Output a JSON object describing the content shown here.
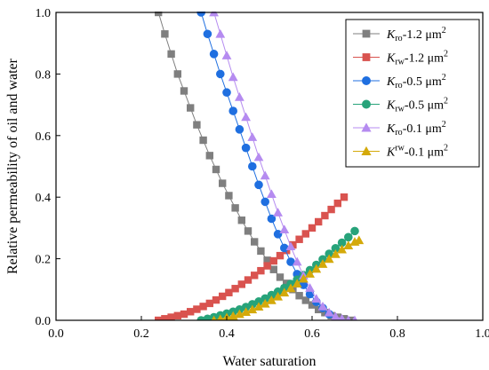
{
  "chart_data": {
    "type": "scatter",
    "xlabel": "Water saturation",
    "ylabel": "Relative permeability of oil and water",
    "xlim": [
      0.0,
      1.0
    ],
    "ylim": [
      0.0,
      1.0
    ],
    "xticks": [
      "0.0",
      "0.2",
      "0.4",
      "0.6",
      "0.8",
      "1.0"
    ],
    "yticks": [
      "0.0",
      "0.2",
      "0.4",
      "0.6",
      "0.8",
      "1.0"
    ],
    "grid": false,
    "legend_position": "top-right",
    "series": [
      {
        "name": "Kro-1.2 μm2",
        "label_main": "K",
        "label_sub": "ro",
        "label_sup": "",
        "label_unit_base": "-1.2 μm",
        "label_unit_sup": "2",
        "marker": "square",
        "color": "#7f7f7f",
        "x": [
          0.24,
          0.255,
          0.27,
          0.285,
          0.3,
          0.315,
          0.33,
          0.345,
          0.36,
          0.375,
          0.39,
          0.405,
          0.42,
          0.435,
          0.45,
          0.465,
          0.48,
          0.495,
          0.51,
          0.525,
          0.54,
          0.555,
          0.57,
          0.585,
          0.6,
          0.615,
          0.63,
          0.645,
          0.66,
          0.675,
          0.69
        ],
        "y": [
          1.0,
          0.93,
          0.865,
          0.8,
          0.745,
          0.69,
          0.635,
          0.585,
          0.535,
          0.49,
          0.445,
          0.405,
          0.365,
          0.325,
          0.29,
          0.255,
          0.225,
          0.195,
          0.165,
          0.14,
          0.12,
          0.1,
          0.08,
          0.065,
          0.05,
          0.035,
          0.025,
          0.015,
          0.01,
          0.005,
          0.0
        ]
      },
      {
        "name": "Krw-1.2 μm2",
        "label_main": "K",
        "label_sub": "rw",
        "label_sup": "",
        "label_unit_base": "-1.2 μm",
        "label_unit_sup": "2",
        "marker": "square",
        "color": "#d9534f",
        "x": [
          0.24,
          0.255,
          0.27,
          0.285,
          0.3,
          0.315,
          0.33,
          0.345,
          0.36,
          0.375,
          0.39,
          0.405,
          0.42,
          0.435,
          0.45,
          0.465,
          0.48,
          0.495,
          0.51,
          0.525,
          0.54,
          0.555,
          0.57,
          0.585,
          0.6,
          0.615,
          0.63,
          0.645,
          0.66,
          0.675
        ],
        "y": [
          0.0,
          0.005,
          0.01,
          0.015,
          0.02,
          0.028,
          0.036,
          0.045,
          0.055,
          0.066,
          0.078,
          0.09,
          0.103,
          0.117,
          0.131,
          0.146,
          0.161,
          0.177,
          0.193,
          0.21,
          0.227,
          0.245,
          0.263,
          0.281,
          0.3,
          0.32,
          0.34,
          0.36,
          0.38,
          0.4
        ]
      },
      {
        "name": "Kro-0.5 μm2",
        "label_main": "K",
        "label_sub": "ro",
        "label_sup": "",
        "label_unit_base": "-0.5 μm",
        "label_unit_sup": "2",
        "marker": "circle",
        "color": "#1f6fe0",
        "x": [
          0.34,
          0.355,
          0.37,
          0.385,
          0.4,
          0.415,
          0.43,
          0.445,
          0.46,
          0.475,
          0.49,
          0.505,
          0.52,
          0.535,
          0.55,
          0.565,
          0.58,
          0.595,
          0.61,
          0.625,
          0.64,
          0.655
        ],
        "y": [
          1.0,
          0.93,
          0.865,
          0.8,
          0.74,
          0.68,
          0.62,
          0.56,
          0.5,
          0.44,
          0.385,
          0.33,
          0.28,
          0.235,
          0.19,
          0.15,
          0.115,
          0.085,
          0.06,
          0.04,
          0.02,
          0.0
        ]
      },
      {
        "name": "Krw-0.5 μm2",
        "label_main": "K",
        "label_sub": "rw",
        "label_sup": "",
        "label_unit_base": "-0.5 μm",
        "label_unit_sup": "2",
        "marker": "circle",
        "color": "#27a37a",
        "x": [
          0.34,
          0.355,
          0.37,
          0.385,
          0.4,
          0.415,
          0.43,
          0.445,
          0.46,
          0.475,
          0.49,
          0.505,
          0.52,
          0.535,
          0.55,
          0.565,
          0.58,
          0.595,
          0.61,
          0.625,
          0.64,
          0.655,
          0.67,
          0.685,
          0.7
        ],
        "y": [
          0.0,
          0.005,
          0.01,
          0.016,
          0.022,
          0.028,
          0.035,
          0.043,
          0.052,
          0.061,
          0.071,
          0.082,
          0.093,
          0.105,
          0.118,
          0.132,
          0.147,
          0.163,
          0.18,
          0.198,
          0.216,
          0.234,
          0.252,
          0.27,
          0.29
        ]
      },
      {
        "name": "Kro-0.1 μm2",
        "label_main": "K",
        "label_sub": "ro",
        "label_sup": "",
        "label_unit_base": "-0.1 μm",
        "label_unit_sup": "2",
        "marker": "triangle",
        "color": "#b58bf0",
        "x": [
          0.37,
          0.385,
          0.4,
          0.415,
          0.43,
          0.445,
          0.46,
          0.475,
          0.49,
          0.505,
          0.52,
          0.535,
          0.55,
          0.565,
          0.58,
          0.595,
          0.61,
          0.625,
          0.64,
          0.655,
          0.67,
          0.685,
          0.7
        ],
        "y": [
          1.0,
          0.93,
          0.86,
          0.79,
          0.725,
          0.66,
          0.595,
          0.53,
          0.47,
          0.41,
          0.35,
          0.295,
          0.24,
          0.19,
          0.145,
          0.105,
          0.07,
          0.045,
          0.025,
          0.012,
          0.005,
          0.0,
          0.0
        ]
      },
      {
        "name": "Krw-0.1 μm2",
        "label_main": "K",
        "label_sub": "",
        "label_sup": "rw",
        "label_unit_base": "-0.1 μm",
        "label_unit_sup": "2",
        "marker": "triangle",
        "color": "#d4a90a",
        "x": [
          0.37,
          0.385,
          0.4,
          0.415,
          0.43,
          0.445,
          0.46,
          0.475,
          0.49,
          0.505,
          0.52,
          0.535,
          0.55,
          0.565,
          0.58,
          0.595,
          0.61,
          0.625,
          0.64,
          0.655,
          0.67,
          0.685,
          0.7,
          0.71
        ],
        "y": [
          0.0,
          0.004,
          0.009,
          0.014,
          0.02,
          0.027,
          0.035,
          0.044,
          0.054,
          0.065,
          0.077,
          0.09,
          0.104,
          0.119,
          0.135,
          0.151,
          0.167,
          0.183,
          0.199,
          0.215,
          0.23,
          0.243,
          0.255,
          0.26
        ]
      }
    ]
  }
}
